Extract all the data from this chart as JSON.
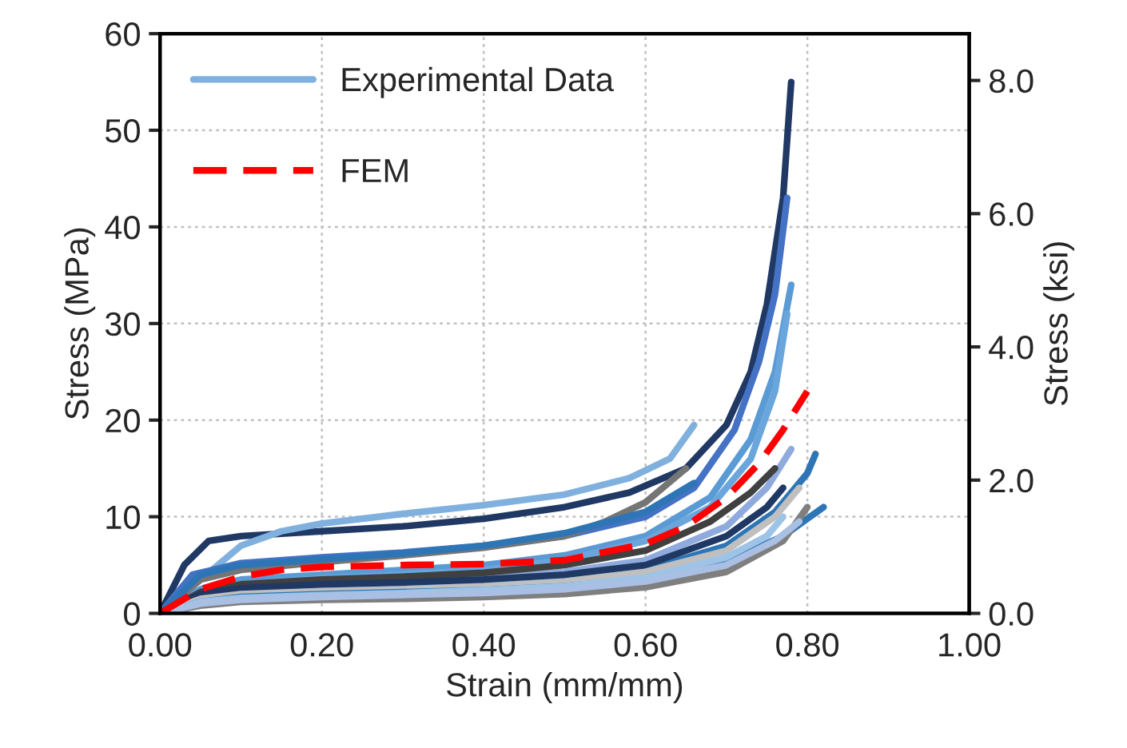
{
  "chart_data": {
    "type": "line",
    "xlabel": "Strain (mm/mm)",
    "ylabel": "Stress (MPa)",
    "y2label": "Stress (ksi)",
    "xlim": [
      0,
      1
    ],
    "xticks": [
      {
        "value": 0,
        "label": "0.00"
      },
      {
        "value": 0.2,
        "label": "0.20"
      },
      {
        "value": 0.4,
        "label": "0.40"
      },
      {
        "value": 0.6,
        "label": "0.60"
      },
      {
        "value": 0.8,
        "label": "0.80"
      },
      {
        "value": 1.0,
        "label": "1.00"
      }
    ],
    "ylim": [
      0,
      60
    ],
    "yticks": [
      0,
      10,
      20,
      30,
      40,
      50,
      60
    ],
    "y2lim": [
      0,
      8.702
    ],
    "y2ticks": [
      {
        "value": 0,
        "label": "0.0"
      },
      {
        "value": 2,
        "label": "2.0"
      },
      {
        "value": 4,
        "label": "4.0"
      },
      {
        "value": 6,
        "label": "6.0"
      },
      {
        "value": 8,
        "label": "8.0"
      }
    ],
    "grid": true,
    "legend": "top left",
    "line_style": "solid",
    "marker": "none",
    "series": [
      {
        "color": "#203864",
        "x": [
          0,
          0.03,
          0.06,
          0.1,
          0.2,
          0.3,
          0.4,
          0.5,
          0.58,
          0.65,
          0.7,
          0.73,
          0.75,
          0.77,
          0.78
        ],
        "values": [
          0,
          5,
          7.5,
          8,
          8.5,
          9,
          9.8,
          11,
          12.5,
          15,
          19.5,
          25,
          32,
          43,
          55
        ]
      },
      {
        "name": "Experimental Data",
        "color": "#7fb0de",
        "x": [
          0,
          0.05,
          0.1,
          0.15,
          0.2,
          0.3,
          0.4,
          0.5,
          0.58,
          0.63,
          0.66
        ],
        "values": [
          0,
          3.5,
          7,
          8.5,
          9.3,
          10.3,
          11.2,
          12.3,
          14,
          16,
          19.5
        ]
      },
      {
        "color": "#4472c4",
        "x": [
          0,
          0.04,
          0.1,
          0.2,
          0.3,
          0.4,
          0.5,
          0.6,
          0.66,
          0.71,
          0.74,
          0.76,
          0.775
        ],
        "values": [
          0,
          4,
          5.2,
          5.8,
          6.3,
          7,
          8,
          10,
          13,
          19,
          26,
          33,
          43
        ]
      },
      {
        "color": "#5b9bd5",
        "x": [
          0,
          0.05,
          0.1,
          0.2,
          0.3,
          0.4,
          0.5,
          0.6,
          0.68,
          0.73,
          0.76,
          0.78
        ],
        "values": [
          0,
          2.5,
          3.5,
          4,
          4.5,
          5,
          6,
          8,
          12,
          18,
          25,
          34
        ]
      },
      {
        "color": "#6aa6dc",
        "x": [
          0,
          0.05,
          0.1,
          0.2,
          0.3,
          0.4,
          0.5,
          0.6,
          0.68,
          0.73,
          0.76,
          0.775
        ],
        "values": [
          0,
          2,
          3,
          3.6,
          4,
          4.5,
          5.5,
          7.5,
          11,
          16,
          23,
          31
        ]
      },
      {
        "color": "#757575",
        "x": [
          0,
          0.05,
          0.1,
          0.2,
          0.3,
          0.4,
          0.5,
          0.55,
          0.6,
          0.65
        ],
        "values": [
          0,
          3.5,
          4.5,
          5.3,
          6,
          6.8,
          8,
          9.5,
          11.5,
          15
        ]
      },
      {
        "color": "#2e75b6",
        "x": [
          0,
          0.05,
          0.1,
          0.2,
          0.3,
          0.4,
          0.5,
          0.6,
          0.66
        ],
        "values": [
          0,
          4,
          5,
          5.6,
          6.2,
          7,
          8.3,
          10.5,
          13.5
        ]
      },
      {
        "color": "#2e75b6",
        "x": [
          0,
          0.05,
          0.1,
          0.2,
          0.3,
          0.4,
          0.5,
          0.6,
          0.7,
          0.76,
          0.8,
          0.81
        ],
        "values": [
          0,
          1.5,
          2.2,
          2.6,
          2.8,
          3,
          3.5,
          4.5,
          7,
          10.5,
          14.5,
          16.5
        ]
      },
      {
        "color": "#8faadc",
        "x": [
          0,
          0.05,
          0.1,
          0.2,
          0.3,
          0.4,
          0.5,
          0.6,
          0.7,
          0.75,
          0.78
        ],
        "values": [
          0,
          2,
          2.8,
          3.2,
          3.4,
          3.7,
          4.3,
          5.5,
          9,
          13,
          17
        ]
      },
      {
        "color": "#404040",
        "x": [
          0,
          0.05,
          0.1,
          0.2,
          0.3,
          0.4,
          0.5,
          0.6,
          0.68,
          0.73,
          0.76
        ],
        "values": [
          0,
          2.2,
          3,
          3.5,
          3.8,
          4.2,
          5,
          6.5,
          9.5,
          12.5,
          15
        ]
      },
      {
        "color": "#1f3864",
        "x": [
          0,
          0.05,
          0.1,
          0.2,
          0.3,
          0.4,
          0.5,
          0.6,
          0.7,
          0.75,
          0.77
        ],
        "values": [
          0,
          2,
          2.6,
          3,
          3.2,
          3.5,
          4,
          5,
          8,
          11,
          13
        ]
      },
      {
        "color": "#bfbfbf",
        "x": [
          0,
          0.05,
          0.1,
          0.2,
          0.3,
          0.4,
          0.5,
          0.6,
          0.7,
          0.76,
          0.79
        ],
        "values": [
          0,
          1.5,
          2,
          2.3,
          2.5,
          2.8,
          3.3,
          4.3,
          6.5,
          10,
          13
        ]
      },
      {
        "color": "#2e75b6",
        "x": [
          0,
          0.05,
          0.1,
          0.2,
          0.3,
          0.4,
          0.5,
          0.6,
          0.7,
          0.77,
          0.82
        ],
        "values": [
          0,
          1.2,
          1.7,
          2,
          2.2,
          2.4,
          2.8,
          3.6,
          5.3,
          8,
          11
        ]
      },
      {
        "color": "#7f7f7f",
        "x": [
          0,
          0.05,
          0.1,
          0.2,
          0.3,
          0.4,
          0.5,
          0.6,
          0.7,
          0.77,
          0.8
        ],
        "values": [
          0,
          0.8,
          1.2,
          1.4,
          1.5,
          1.7,
          2,
          2.7,
          4.3,
          7.5,
          11
        ]
      },
      {
        "color": "#9dc3e6",
        "x": [
          0,
          0.05,
          0.1,
          0.2,
          0.3,
          0.4,
          0.5,
          0.6,
          0.7,
          0.75,
          0.77
        ],
        "values": [
          0,
          1.2,
          1.6,
          1.9,
          2.1,
          2.4,
          2.8,
          3.7,
          5.8,
          8,
          10
        ]
      },
      {
        "color": "#a9bfe3",
        "x": [
          0,
          0.05,
          0.1,
          0.2,
          0.3,
          0.4,
          0.5,
          0.6,
          0.7,
          0.76,
          0.79
        ],
        "values": [
          0,
          1,
          1.4,
          1.7,
          1.9,
          2.1,
          2.5,
          3.3,
          5,
          7.5,
          9.5
        ]
      },
      {
        "name": "FEM",
        "color": "#ff0000",
        "line_style": "dashed",
        "x": [
          0,
          0.05,
          0.1,
          0.15,
          0.2,
          0.3,
          0.4,
          0.5,
          0.6,
          0.65,
          0.7,
          0.74,
          0.77,
          0.8
        ],
        "values": [
          0,
          2.5,
          3.8,
          4.5,
          4.8,
          5,
          5.1,
          5.5,
          7.2,
          9,
          12,
          15.5,
          19,
          23
        ]
      }
    ]
  }
}
